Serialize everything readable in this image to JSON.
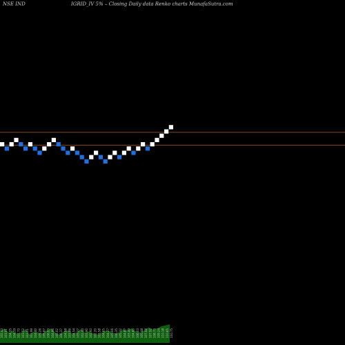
{
  "header": {
    "exchange_symbol": "NSE IND",
    "caption": "IGRID_IV 5% –  Closing Daily data  Renko  charts MunafaSutra.com"
  },
  "colors": {
    "background": "#000000",
    "up_brick": "#ffffff",
    "down_brick": "#1f6fe0",
    "level_line": "#8a4a1a",
    "volume": "#0c5d0c"
  },
  "chart_data": {
    "type": "renko",
    "title": "",
    "bricks": [
      {
        "dir": "up",
        "level": 0
      },
      {
        "dir": "down",
        "level": -1
      },
      {
        "dir": "up",
        "level": 0
      },
      {
        "dir": "up",
        "level": 1
      },
      {
        "dir": "down",
        "level": 0
      },
      {
        "dir": "down",
        "level": -1
      },
      {
        "dir": "up",
        "level": 0
      },
      {
        "dir": "down",
        "level": -1
      },
      {
        "dir": "down",
        "level": -2
      },
      {
        "dir": "up",
        "level": -1
      },
      {
        "dir": "up",
        "level": 0
      },
      {
        "dir": "up",
        "level": 1
      },
      {
        "dir": "down",
        "level": 0
      },
      {
        "dir": "down",
        "level": -1
      },
      {
        "dir": "down",
        "level": -2
      },
      {
        "dir": "up",
        "level": -1
      },
      {
        "dir": "down",
        "level": -2
      },
      {
        "dir": "down",
        "level": -3
      },
      {
        "dir": "down",
        "level": -4
      },
      {
        "dir": "up",
        "level": -3
      },
      {
        "dir": "up",
        "level": -2
      },
      {
        "dir": "down",
        "level": -3
      },
      {
        "dir": "down",
        "level": -4
      },
      {
        "dir": "up",
        "level": -3
      },
      {
        "dir": "up",
        "level": -2
      },
      {
        "dir": "down",
        "level": -3
      },
      {
        "dir": "up",
        "level": -2
      },
      {
        "dir": "up",
        "level": -1
      },
      {
        "dir": "down",
        "level": -2
      },
      {
        "dir": "up",
        "level": -1
      },
      {
        "dir": "up",
        "level": 0
      },
      {
        "dir": "down",
        "level": -1
      },
      {
        "dir": "up",
        "level": 0
      },
      {
        "dir": "up",
        "level": 1
      },
      {
        "dir": "up",
        "level": 2
      },
      {
        "dir": "up",
        "level": 3
      },
      {
        "dir": "up",
        "level": 4
      }
    ],
    "reference_lines": [
      {
        "level": 2.3
      },
      {
        "level": -0.7
      }
    ],
    "volume_labels": [
      "102.43",
      "103.01",
      "104.35",
      "104.19",
      "102.73",
      "103.52",
      "103.01",
      "103.99",
      "104.40",
      "105.26",
      "105.87",
      "106.03",
      "104.96",
      "105.02",
      "106.37",
      "104.98",
      "103.86",
      "104.54",
      "105.27",
      "102.40",
      "103.90",
      "102.93",
      "102.20",
      "103.58",
      "104.65",
      "104.27",
      "105.06",
      "106.35",
      "105.32",
      "104.87",
      "103.49",
      "104.60",
      "106.03",
      "105.48",
      "107.08",
      "107.52",
      "108.73",
      "109.24",
      "110.18",
      "110.65",
      "110.75"
    ],
    "volume_values": [
      0.55,
      0.7,
      0.5,
      0.6,
      0.45,
      0.5,
      0.65,
      0.4,
      0.55,
      0.5,
      0.45,
      0.6,
      0.7,
      0.5,
      0.4,
      0.55,
      0.6,
      0.45,
      0.5,
      0.65,
      0.5,
      0.55,
      0.45,
      0.4,
      0.5,
      0.6,
      0.55,
      0.45,
      0.5,
      0.65,
      0.6,
      0.7,
      0.55,
      0.5,
      0.6,
      0.75,
      0.65,
      0.7,
      0.8,
      0.85,
      0.9
    ]
  }
}
